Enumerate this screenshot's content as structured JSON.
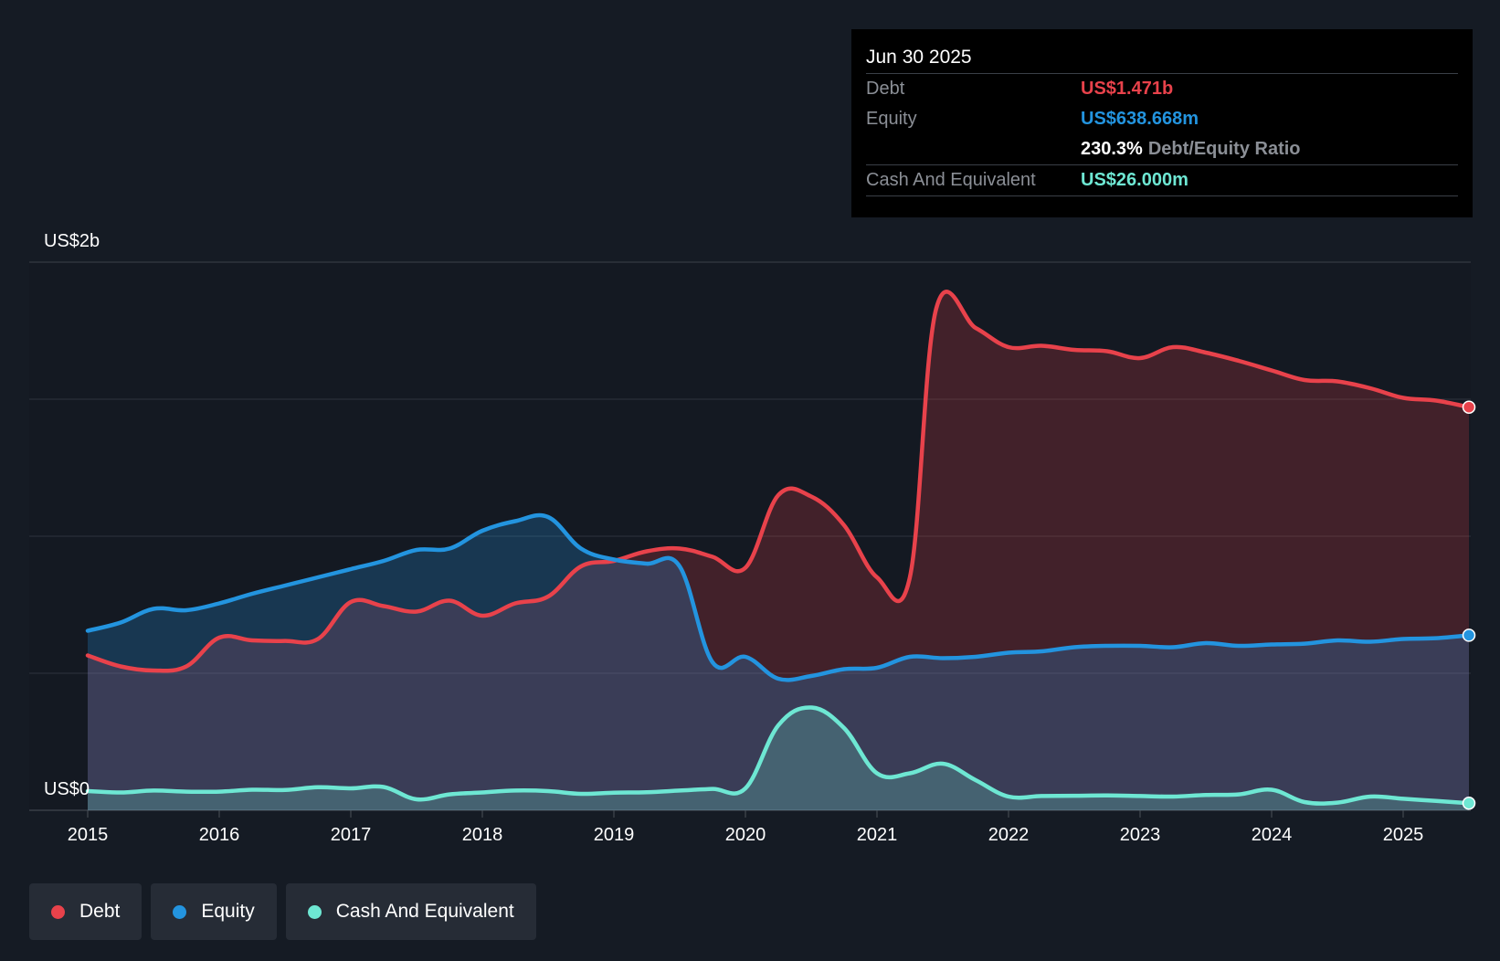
{
  "chart_data": {
    "type": "area",
    "y_axis": {
      "top_label": "US$2b",
      "bottom_label": "US$0",
      "ylim": [
        0,
        2000
      ]
    },
    "x_axis": {
      "ticks": [
        "2015",
        "2016",
        "2017",
        "2018",
        "2019",
        "2020",
        "2021",
        "2022",
        "2023",
        "2024",
        "2025"
      ]
    },
    "x_range": [
      2015.0,
      2025.5
    ],
    "series": [
      {
        "name": "Debt",
        "color": "#e8424b",
        "points": [
          [
            2015.0,
            565
          ],
          [
            2015.25,
            525
          ],
          [
            2015.5,
            510
          ],
          [
            2015.75,
            525
          ],
          [
            2016.0,
            630
          ],
          [
            2016.25,
            620
          ],
          [
            2016.5,
            618
          ],
          [
            2016.75,
            625
          ],
          [
            2017.0,
            760
          ],
          [
            2017.25,
            745
          ],
          [
            2017.5,
            725
          ],
          [
            2017.75,
            765
          ],
          [
            2018.0,
            710
          ],
          [
            2018.25,
            755
          ],
          [
            2018.5,
            780
          ],
          [
            2018.75,
            890
          ],
          [
            2019.0,
            910
          ],
          [
            2019.25,
            945
          ],
          [
            2019.5,
            955
          ],
          [
            2019.75,
            925
          ],
          [
            2020.0,
            885
          ],
          [
            2020.25,
            1150
          ],
          [
            2020.5,
            1145
          ],
          [
            2020.75,
            1040
          ],
          [
            2021.0,
            850
          ],
          [
            2021.25,
            850
          ],
          [
            2021.45,
            1830
          ],
          [
            2021.75,
            1760
          ],
          [
            2022.0,
            1690
          ],
          [
            2022.25,
            1695
          ],
          [
            2022.5,
            1680
          ],
          [
            2022.75,
            1675
          ],
          [
            2023.0,
            1650
          ],
          [
            2023.25,
            1690
          ],
          [
            2023.5,
            1670
          ],
          [
            2023.75,
            1640
          ],
          [
            2024.0,
            1605
          ],
          [
            2024.25,
            1570
          ],
          [
            2024.5,
            1565
          ],
          [
            2024.75,
            1540
          ],
          [
            2025.0,
            1505
          ],
          [
            2025.25,
            1495
          ],
          [
            2025.5,
            1471
          ]
        ]
      },
      {
        "name": "Equity",
        "color": "#2394df",
        "points": [
          [
            2015.0,
            655
          ],
          [
            2015.25,
            685
          ],
          [
            2015.5,
            735
          ],
          [
            2015.75,
            730
          ],
          [
            2016.0,
            755
          ],
          [
            2016.25,
            790
          ],
          [
            2016.5,
            820
          ],
          [
            2016.75,
            850
          ],
          [
            2017.0,
            880
          ],
          [
            2017.25,
            910
          ],
          [
            2017.5,
            950
          ],
          [
            2017.75,
            955
          ],
          [
            2018.0,
            1020
          ],
          [
            2018.25,
            1055
          ],
          [
            2018.5,
            1070
          ],
          [
            2018.75,
            955
          ],
          [
            2019.0,
            915
          ],
          [
            2019.25,
            900
          ],
          [
            2019.5,
            890
          ],
          [
            2019.75,
            540
          ],
          [
            2020.0,
            560
          ],
          [
            2020.25,
            480
          ],
          [
            2020.5,
            490
          ],
          [
            2020.75,
            515
          ],
          [
            2021.0,
            520
          ],
          [
            2021.25,
            560
          ],
          [
            2021.5,
            555
          ],
          [
            2021.75,
            560
          ],
          [
            2022.0,
            575
          ],
          [
            2022.25,
            580
          ],
          [
            2022.5,
            595
          ],
          [
            2022.75,
            600
          ],
          [
            2023.0,
            600
          ],
          [
            2023.25,
            595
          ],
          [
            2023.5,
            610
          ],
          [
            2023.75,
            600
          ],
          [
            2024.0,
            605
          ],
          [
            2024.25,
            608
          ],
          [
            2024.5,
            620
          ],
          [
            2024.75,
            615
          ],
          [
            2025.0,
            625
          ],
          [
            2025.25,
            628
          ],
          [
            2025.5,
            638.668
          ]
        ]
      },
      {
        "name": "Cash And Equivalent",
        "color": "#6ee7d3",
        "points": [
          [
            2015.0,
            70
          ],
          [
            2015.25,
            65
          ],
          [
            2015.5,
            72
          ],
          [
            2015.75,
            68
          ],
          [
            2016.0,
            68
          ],
          [
            2016.25,
            75
          ],
          [
            2016.5,
            74
          ],
          [
            2016.75,
            84
          ],
          [
            2017.0,
            80
          ],
          [
            2017.25,
            85
          ],
          [
            2017.5,
            40
          ],
          [
            2017.75,
            58
          ],
          [
            2018.0,
            65
          ],
          [
            2018.25,
            72
          ],
          [
            2018.5,
            70
          ],
          [
            2018.75,
            60
          ],
          [
            2019.0,
            64
          ],
          [
            2019.25,
            66
          ],
          [
            2019.5,
            72
          ],
          [
            2019.75,
            78
          ],
          [
            2020.0,
            80
          ],
          [
            2020.25,
            310
          ],
          [
            2020.5,
            375
          ],
          [
            2020.75,
            300
          ],
          [
            2021.0,
            135
          ],
          [
            2021.25,
            135
          ],
          [
            2021.5,
            170
          ],
          [
            2021.75,
            110
          ],
          [
            2022.0,
            50
          ],
          [
            2022.25,
            52
          ],
          [
            2022.5,
            53
          ],
          [
            2022.75,
            54
          ],
          [
            2023.0,
            52
          ],
          [
            2023.25,
            50
          ],
          [
            2023.5,
            56
          ],
          [
            2023.75,
            58
          ],
          [
            2024.0,
            75
          ],
          [
            2024.25,
            30
          ],
          [
            2024.5,
            28
          ],
          [
            2024.75,
            50
          ],
          [
            2025.0,
            42
          ],
          [
            2025.25,
            34
          ],
          [
            2025.5,
            26
          ]
        ]
      }
    ],
    "tooltip": {
      "date": "Jun 30 2025",
      "debt_label": "Debt",
      "debt_value": "US$1.471b",
      "equity_label": "Equity",
      "equity_value": "US$638.668m",
      "ratio_value": "230.3%",
      "ratio_label": "Debt/Equity Ratio",
      "cash_label": "Cash And Equivalent",
      "cash_value": "US$26.000m"
    },
    "legend": [
      "Debt",
      "Equity",
      "Cash And Equivalent"
    ]
  },
  "colors": {
    "debt": "#e8424b",
    "equity": "#2394df",
    "cash": "#6ee7d3"
  }
}
